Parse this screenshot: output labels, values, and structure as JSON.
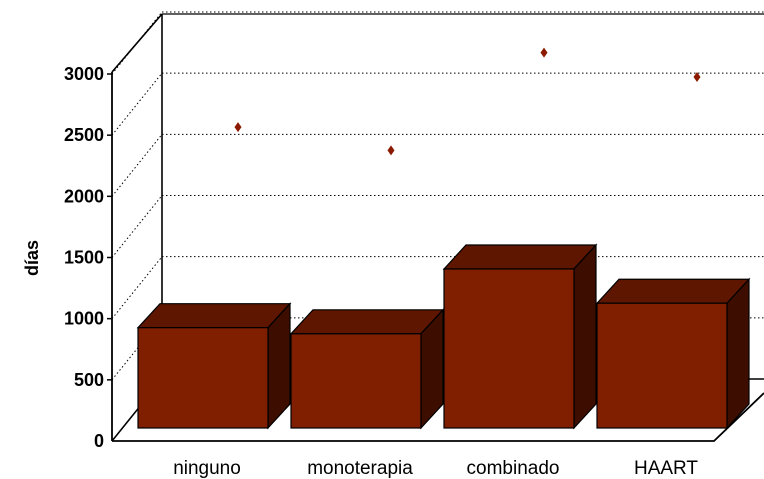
{
  "chart_data": {
    "type": "bar",
    "categories": [
      "ninguno",
      "monoterapia",
      "combinado",
      "HAART"
    ],
    "series": [
      {
        "values": [
          820,
          770,
          1300,
          1020
        ]
      },
      {
        "values": [
          2320,
          2130,
          2930,
          2730
        ]
      }
    ],
    "title": "",
    "xlabel": "",
    "ylabel": "días",
    "yticks": [
      "0",
      "500",
      "1000",
      "1500",
      "2000",
      "2500",
      "3000"
    ],
    "ylim": [
      0,
      3000
    ],
    "grid": true,
    "colors": {
      "bar_front": "#7f1f00",
      "bar_top": "#5e1600",
      "bar_side": "#3d0e00",
      "marker": "#8b1a00"
    }
  }
}
